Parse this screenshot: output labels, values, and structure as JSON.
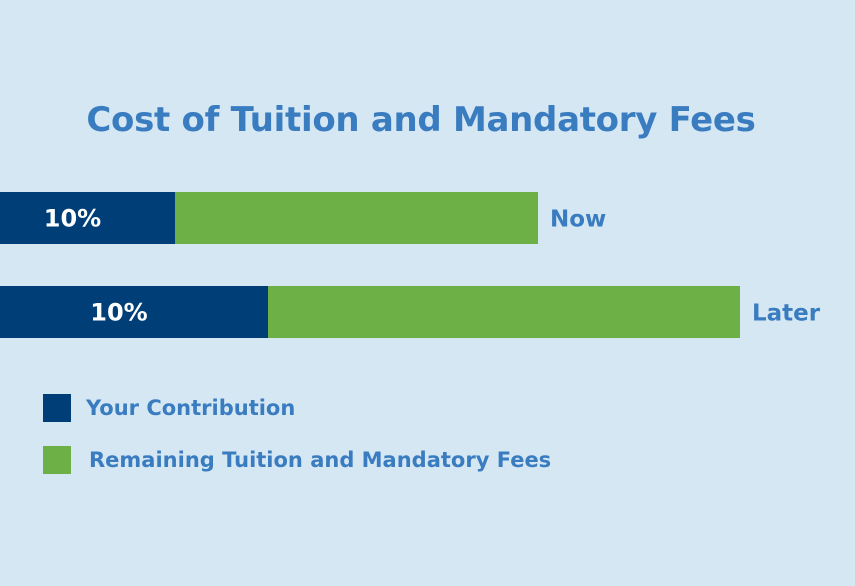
{
  "chart_data": {
    "type": "bar",
    "orientation": "horizontal",
    "stacked": true,
    "title": "Cost of Tuition and Mandatory Fees",
    "categories": [
      "Now",
      "Later"
    ],
    "series": [
      {
        "name": "Your Contribution",
        "color": "#003e78",
        "values": [
          175,
          268
        ],
        "labels": [
          "10%",
          "10%"
        ]
      },
      {
        "name": "Remaining Tuition and Mandatory Fees",
        "color": "#6db045",
        "values": [
          363,
          472
        ]
      }
    ],
    "xlim": [
      0,
      855
    ],
    "grid": false,
    "axes_visible": false,
    "legend_position": "bottom-left"
  }
}
